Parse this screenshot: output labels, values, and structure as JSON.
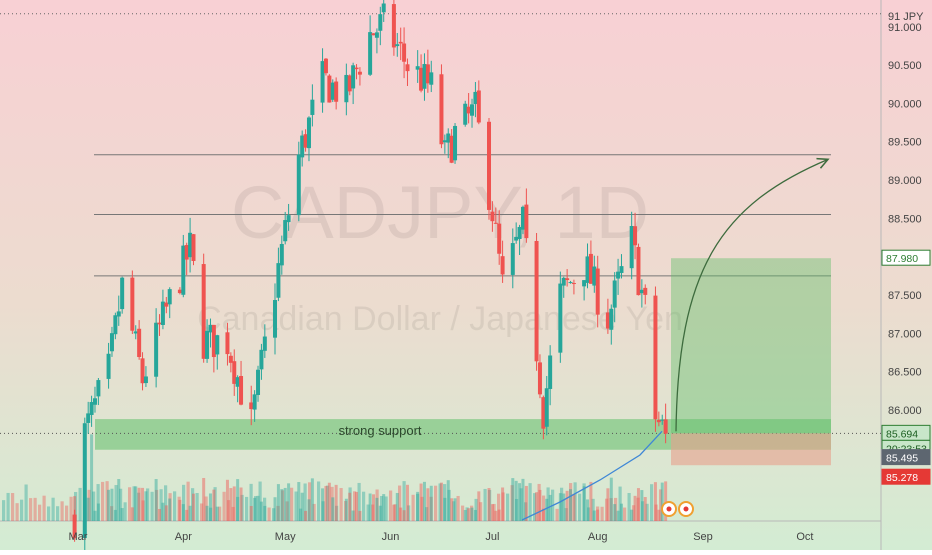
{
  "chart_data": {
    "type": "candlestick",
    "symbol": "CADJPY, 1D",
    "watermark_subtitle": "Canadian Dollar / Japanese Yen",
    "currency": "JPY",
    "y_unit_label": "91 JPY",
    "ylim": [
      84.55,
      91.35
    ],
    "y_ticks": [
      "91.000",
      "90.500",
      "90.000",
      "89.500",
      "89.000",
      "88.500",
      "88.000",
      "87.500",
      "87.000",
      "86.500",
      "86.000"
    ],
    "x_ticks": [
      "Mar",
      "Apr",
      "May",
      "Jun",
      "Jul",
      "Aug",
      "Sep",
      "Oct"
    ],
    "annotation": "strong support",
    "price_tags": [
      {
        "value": "87.980",
        "kind": "target"
      },
      {
        "value": "85.694",
        "kind": "last"
      },
      {
        "value": "20:23:53",
        "kind": "countdown"
      },
      {
        "value": "85.495",
        "kind": "level"
      },
      {
        "value": "85.278",
        "kind": "stop"
      }
    ],
    "levels": {
      "support_zone": [
        85.48,
        85.88
      ],
      "horizontal_lines": [
        89.33,
        88.55,
        87.75
      ],
      "dotted_high": 91.17,
      "long_target": 87.98,
      "long_entry": 85.694,
      "long_stop": 85.278
    },
    "ohlc_path_keypoints": [
      {
        "x": "Feb 28",
        "close": 84.6
      },
      {
        "x": "Mar 3",
        "close": 85.7
      },
      {
        "x": "Mar 10",
        "close": 86.5
      },
      {
        "x": "Mar 14",
        "close": 87.6
      },
      {
        "x": "Mar 20",
        "close": 86.4
      },
      {
        "x": "Mar 27",
        "close": 87.3
      },
      {
        "x": "Apr 3",
        "close": 88.1
      },
      {
        "x": "Apr 7",
        "close": 86.9
      },
      {
        "x": "Apr 14",
        "close": 86.9
      },
      {
        "x": "Apr 21",
        "close": 85.8
      },
      {
        "x": "Apr 28",
        "close": 87.6
      },
      {
        "x": "May 5",
        "close": 89.3
      },
      {
        "x": "May 12",
        "close": 90.3
      },
      {
        "x": "May 19",
        "close": 90.1
      },
      {
        "x": "May 26",
        "close": 90.9
      },
      {
        "x": "May 30",
        "close": 91.05
      },
      {
        "x": "Jun 6",
        "close": 90.5
      },
      {
        "x": "Jun 13",
        "close": 90.2
      },
      {
        "x": "Jun 17",
        "close": 89.3
      },
      {
        "x": "Jun 20",
        "close": 89.6
      },
      {
        "x": "Jun 26",
        "close": 89.9
      },
      {
        "x": "Jul 1",
        "close": 88.6
      },
      {
        "x": "Jul 4",
        "close": 87.6
      },
      {
        "x": "Jul 10",
        "close": 88.4
      },
      {
        "x": "Jul 16",
        "close": 86.0
      },
      {
        "x": "Jul 21",
        "close": 87.5
      },
      {
        "x": "Jul 28",
        "close": 87.9
      },
      {
        "x": "Aug 4",
        "close": 87.2
      },
      {
        "x": "Aug 11",
        "close": 88.2
      },
      {
        "x": "Aug 15",
        "close": 87.3
      },
      {
        "x": "Aug 18",
        "close": 85.9
      },
      {
        "x": "Aug 21",
        "close": 85.69
      }
    ],
    "grid": false,
    "colors": {
      "up": "#26a69a",
      "down": "#ef5350",
      "bg_top": "#f8d0d4",
      "bg_bottom": "#d3ecd3",
      "support": "#5fbf6a",
      "projection": "#3d6b3d",
      "ma": "#3f87d6"
    }
  }
}
